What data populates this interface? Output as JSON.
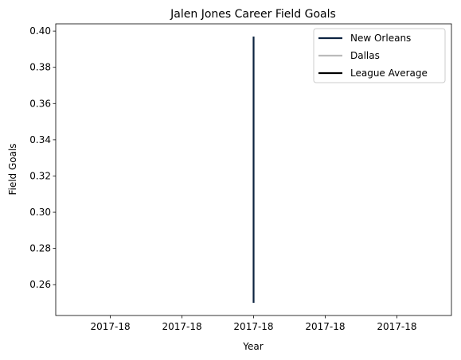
{
  "chart_data": {
    "type": "line",
    "title": "Jalen Jones Career Field Goals",
    "xlabel": "Year",
    "ylabel": "Field Goals",
    "x_tick_labels": [
      "2017-18",
      "2017-18",
      "2017-18",
      "2017-18",
      "2017-18"
    ],
    "y_ticks": [
      "0.26",
      "0.28",
      "0.30",
      "0.32",
      "0.34",
      "0.36",
      "0.38",
      "0.40"
    ],
    "ylim": [
      0.243,
      0.404
    ],
    "grid": false,
    "legend_position": "top-right",
    "series": [
      {
        "name": "New Orleans",
        "color": "#0c2340",
        "x": [
          "2017-18",
          "2017-18"
        ],
        "y": [
          0.25,
          0.397
        ]
      },
      {
        "name": "Dallas",
        "color": "#bbbbbb",
        "x": [],
        "y": []
      },
      {
        "name": "League Average",
        "color": "#000000",
        "x": [],
        "y": []
      }
    ]
  }
}
